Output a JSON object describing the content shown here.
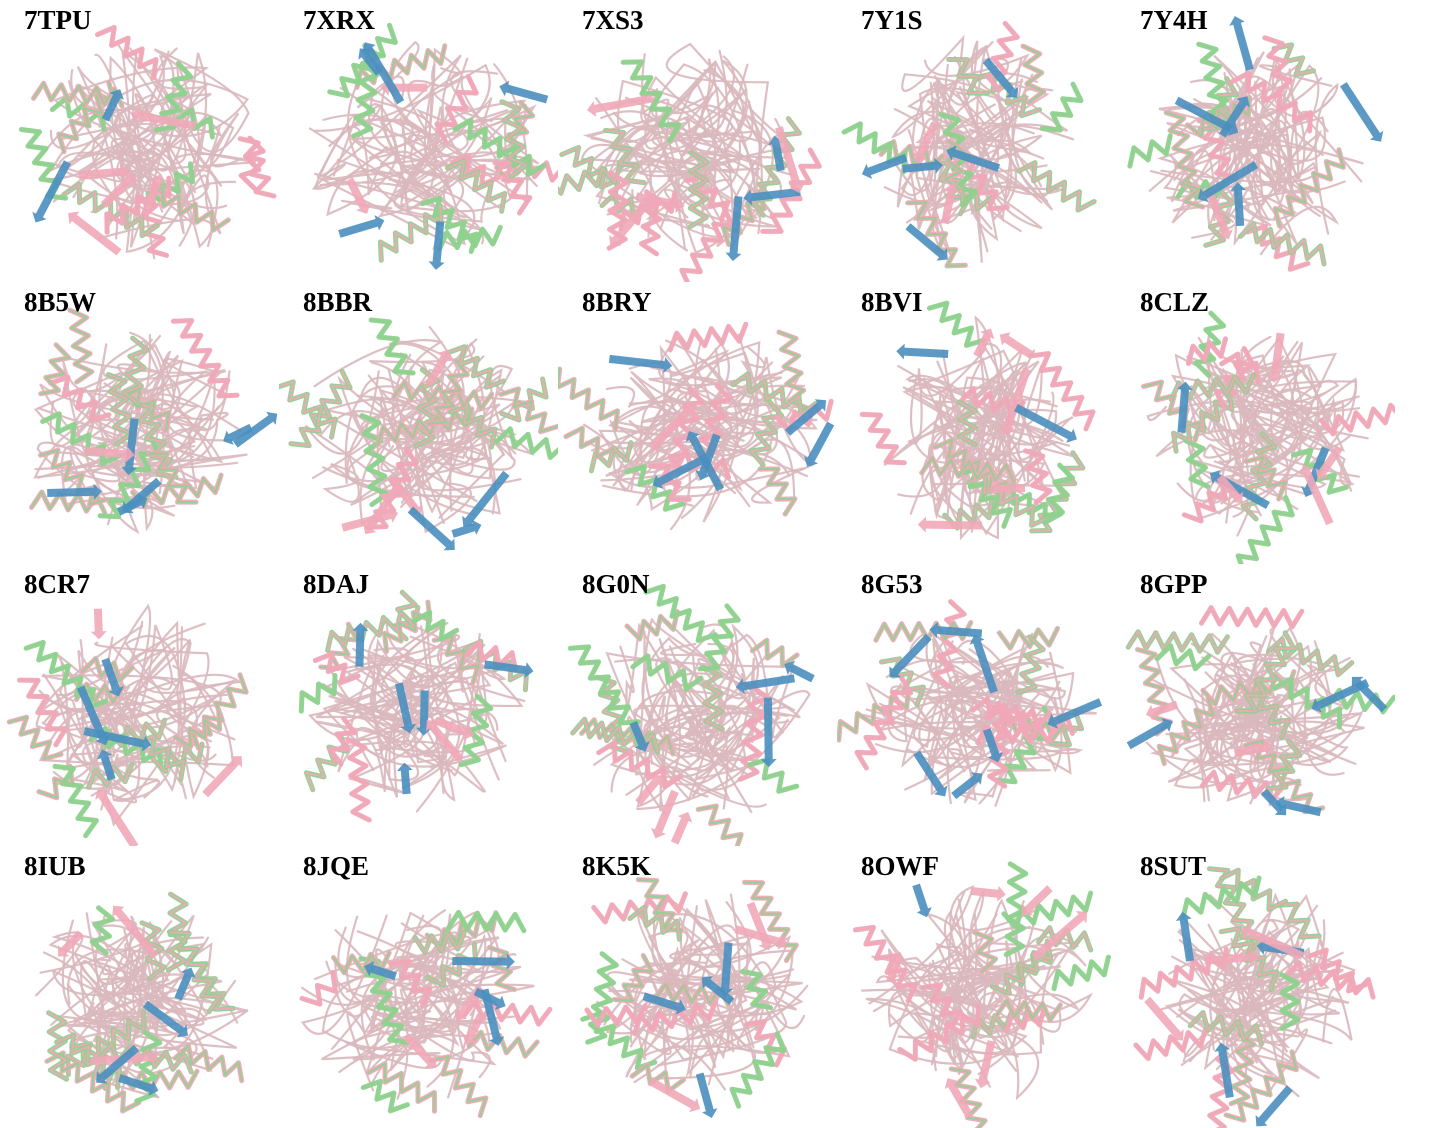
{
  "colors": {
    "coil": "#d9b8bc",
    "pink_ribbon": "#f0a8b8",
    "green_helix": "#8fd18f",
    "blue_strand": "#4a8fbf"
  },
  "cells": [
    {
      "label": "7TPU"
    },
    {
      "label": "7XRX"
    },
    {
      "label": "7XS3"
    },
    {
      "label": "7Y1S"
    },
    {
      "label": "7Y4H"
    },
    {
      "label": "8B5W"
    },
    {
      "label": "8BBR"
    },
    {
      "label": "8BRY"
    },
    {
      "label": "8BVI"
    },
    {
      "label": "8CLZ"
    },
    {
      "label": "8CR7"
    },
    {
      "label": "8DAJ"
    },
    {
      "label": "8G0N"
    },
    {
      "label": "8G53"
    },
    {
      "label": "8GPP"
    },
    {
      "label": "8IUB"
    },
    {
      "label": "8JQE"
    },
    {
      "label": "8K5K"
    },
    {
      "label": "8OWF"
    },
    {
      "label": "8SUT"
    }
  ]
}
